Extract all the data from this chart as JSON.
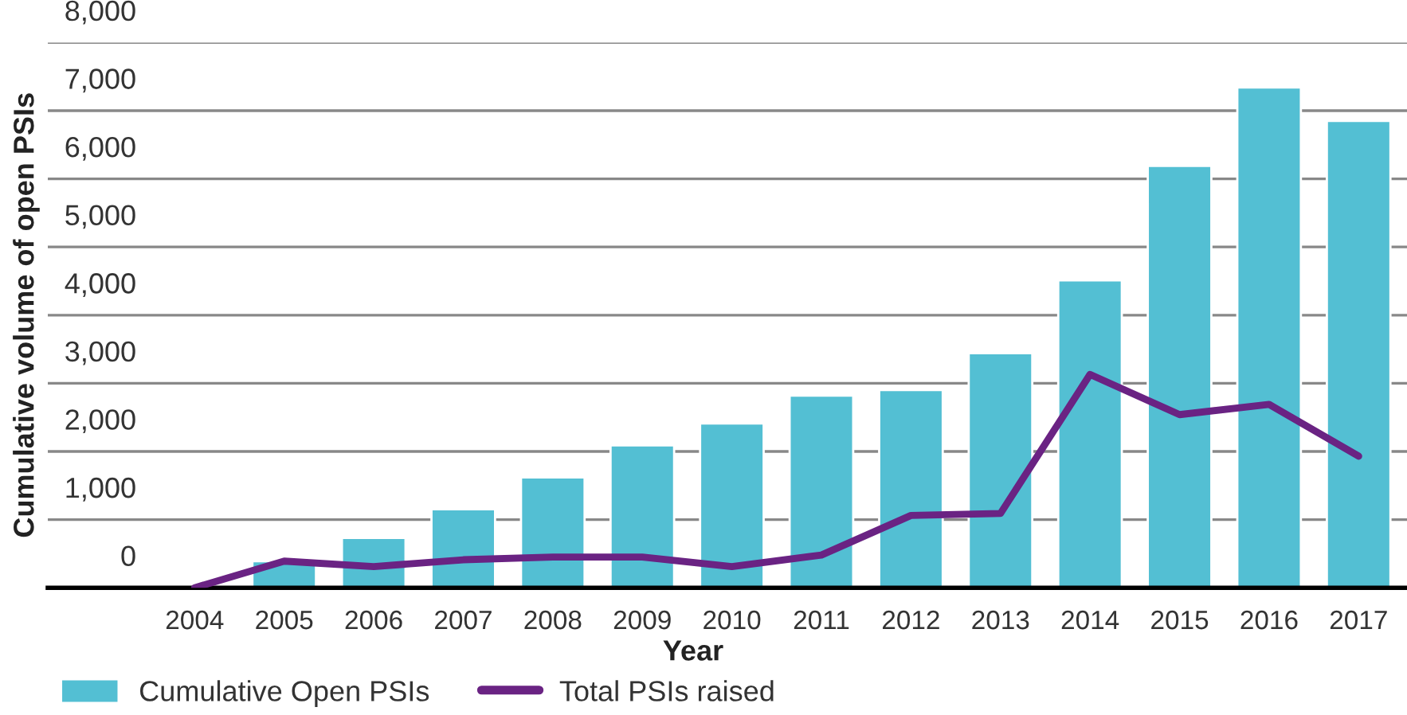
{
  "chart_data": {
    "type": "bar",
    "xlabel": "Year",
    "ylabel": "Cumulative volume of open PSIs",
    "categories": [
      "2004",
      "2005",
      "2006",
      "2007",
      "2008",
      "2009",
      "2010",
      "2011",
      "2012",
      "2013",
      "2014",
      "2015",
      "2016",
      "2017"
    ],
    "series": [
      {
        "name": "Cumulative Open PSIs",
        "color": "#53bfd3",
        "values": [
          null,
          390,
          730,
          1150,
          1620,
          2090,
          2410,
          2820,
          2900,
          3440,
          4510,
          6190,
          7340,
          6850
        ]
      },
      {
        "name": "Total PSIs raised",
        "type": "line",
        "color": "#6a2383",
        "values": [
          0,
          390,
          310,
          410,
          450,
          450,
          310,
          480,
          1060,
          1090,
          3130,
          2540,
          2690,
          1930
        ]
      }
    ],
    "ylim": [
      0,
      8000
    ],
    "yticks": [
      0,
      {
        "value": 1000,
        "label": "1,000"
      },
      {
        "value": 2000,
        "label": "2,000"
      },
      {
        "value": 3000,
        "label": "3,000"
      },
      {
        "value": 4000,
        "label": "4,000"
      },
      {
        "value": 5000,
        "label": "5,000"
      },
      {
        "value": 6000,
        "label": "6,000"
      },
      {
        "value": 7000,
        "label": "7,000"
      },
      {
        "value": 8000,
        "label": "8,000"
      }
    ],
    "grid": "y",
    "legend": "bottom",
    "marker": "none",
    "line_style": "solid"
  }
}
